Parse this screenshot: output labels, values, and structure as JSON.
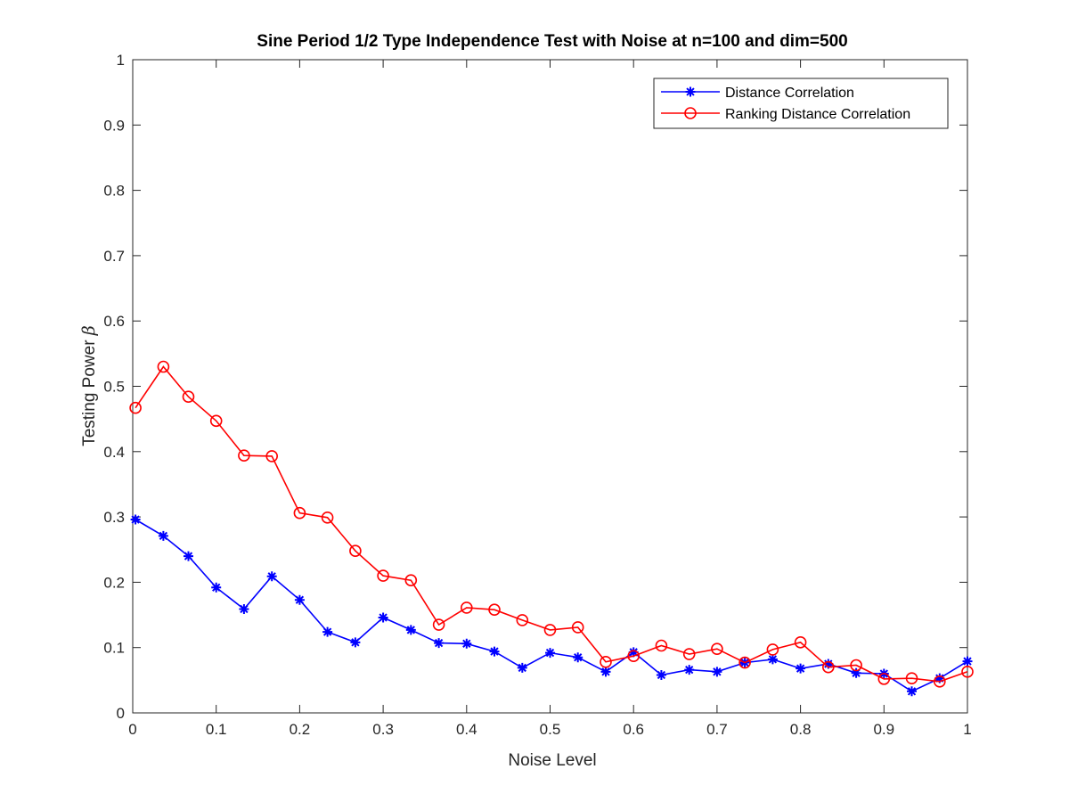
{
  "chart_data": {
    "type": "line",
    "title": "Sine Period 1/2 Type Independence Test with Noise at n=100 and dim=500",
    "xlabel": "Noise Level",
    "ylabel_text": "Testing Power ",
    "ylabel_symbol": "β",
    "xlim": [
      0,
      1
    ],
    "ylim": [
      0,
      1
    ],
    "xticks": [
      0,
      0.1,
      0.2,
      0.3,
      0.4,
      0.5,
      0.6,
      0.7,
      0.8,
      0.9,
      1
    ],
    "xtick_labels": [
      "0",
      "0.1",
      "0.2",
      "0.3",
      "0.4",
      "0.5",
      "0.6",
      "0.7",
      "0.8",
      "0.9",
      "1"
    ],
    "yticks": [
      0,
      0.1,
      0.2,
      0.3,
      0.4,
      0.5,
      0.6,
      0.7,
      0.8,
      0.9,
      1
    ],
    "ytick_labels": [
      "0",
      "0.1",
      "0.2",
      "0.3",
      "0.4",
      "0.5",
      "0.6",
      "0.7",
      "0.8",
      "0.9",
      "1"
    ],
    "grid": false,
    "legend_position": "top-right",
    "x": [
      0.0033,
      0.0367,
      0.0667,
      0.1,
      0.1333,
      0.1667,
      0.2,
      0.2333,
      0.2667,
      0.3,
      0.3333,
      0.3667,
      0.4,
      0.4333,
      0.4667,
      0.5,
      0.5333,
      0.5667,
      0.6,
      0.6333,
      0.6667,
      0.7,
      0.7333,
      0.7667,
      0.8,
      0.8333,
      0.8667,
      0.9,
      0.9333,
      0.9667,
      1.0
    ],
    "series": [
      {
        "name": "Distance Correlation",
        "color": "#0000ff",
        "marker": "asterisk",
        "values": [
          0.296,
          0.271,
          0.24,
          0.192,
          0.159,
          0.209,
          0.173,
          0.124,
          0.108,
          0.146,
          0.127,
          0.107,
          0.106,
          0.094,
          0.069,
          0.092,
          0.085,
          0.063,
          0.093,
          0.058,
          0.066,
          0.063,
          0.077,
          0.082,
          0.068,
          0.075,
          0.061,
          0.06,
          0.033,
          0.053,
          0.079
        ]
      },
      {
        "name": "Ranking Distance Correlation",
        "color": "#ff0000",
        "marker": "circle",
        "values": [
          0.467,
          0.53,
          0.484,
          0.447,
          0.394,
          0.393,
          0.306,
          0.299,
          0.248,
          0.21,
          0.203,
          0.135,
          0.161,
          0.158,
          0.142,
          0.127,
          0.131,
          0.078,
          0.087,
          0.103,
          0.09,
          0.098,
          0.077,
          0.097,
          0.108,
          0.07,
          0.073,
          0.052,
          0.053,
          0.048,
          0.063
        ]
      }
    ]
  }
}
